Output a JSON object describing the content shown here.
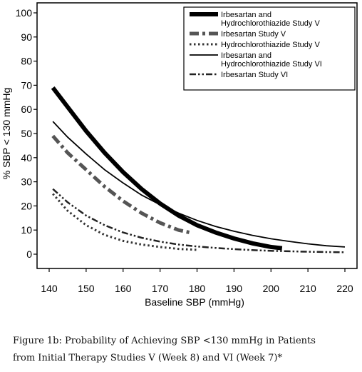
{
  "chart_data": {
    "type": "line",
    "xlabel": "Baseline SBP (mmHg)",
    "ylabel": "% SBP < 130 mmHg",
    "xlim": [
      140,
      220
    ],
    "ylim": [
      0,
      100
    ],
    "x_ticks": [
      140,
      150,
      160,
      170,
      180,
      190,
      200,
      210,
      220
    ],
    "y_ticks": [
      0,
      10,
      20,
      30,
      40,
      50,
      60,
      70,
      80,
      90,
      100
    ],
    "grid": false,
    "legend_position": "top-right",
    "series": [
      {
        "name": "Irbesartan and Hydrochlorothiazide Study V",
        "legend_lines": [
          "Irbesartan and",
          "Hydrochlorothiazide Study V"
        ],
        "style": "thick-solid",
        "x": [
          141,
          145,
          150,
          155,
          160,
          165,
          170,
          175,
          180,
          185,
          190,
          195,
          200,
          203
        ],
        "y": [
          69,
          61,
          51,
          42,
          34,
          27,
          21,
          16,
          12,
          9,
          6.5,
          4.5,
          3,
          2.5
        ]
      },
      {
        "name": "Irbesartan Study V",
        "legend_lines": [
          "Irbesartan Study V"
        ],
        "style": "thick-dash-dot",
        "x": [
          141,
          145,
          150,
          155,
          160,
          165,
          170,
          175,
          178
        ],
        "y": [
          49,
          42,
          35,
          28,
          22,
          17,
          13,
          10,
          9
        ]
      },
      {
        "name": "Hydrochlorothiazide Study V",
        "legend_lines": [
          "Hydrochlorothiazide Study V"
        ],
        "style": "dotted",
        "x": [
          141,
          145,
          150,
          155,
          160,
          165,
          170,
          175,
          180
        ],
        "y": [
          25,
          18,
          12,
          8,
          5.5,
          4,
          3,
          2.2,
          1.8
        ]
      },
      {
        "name": "Irbesartan and Hydrochlorothiazide Study VI",
        "legend_lines": [
          "Irbesartan and",
          "Hydrochlorothiazide Study VI"
        ],
        "style": "thin-solid",
        "x": [
          141,
          145,
          150,
          155,
          160,
          165,
          170,
          175,
          180,
          185,
          190,
          195,
          200,
          205,
          210,
          215,
          220
        ],
        "y": [
          55,
          48.5,
          41.5,
          35,
          29.5,
          24.5,
          20.5,
          17,
          14,
          11.5,
          9.5,
          7.8,
          6.4,
          5.3,
          4.3,
          3.5,
          3
        ]
      },
      {
        "name": "Irbesartan Study VI",
        "legend_lines": [
          "Irbesartan Study VI"
        ],
        "style": "dash-dot-dot",
        "x": [
          141,
          145,
          150,
          155,
          160,
          165,
          170,
          175,
          180,
          185,
          190,
          195,
          200,
          205,
          210,
          215,
          220
        ],
        "y": [
          27,
          21.5,
          16,
          12,
          9,
          6.8,
          5.2,
          4,
          3.2,
          2.6,
          2.1,
          1.7,
          1.4,
          1.2,
          1,
          0.9,
          0.8
        ]
      }
    ]
  },
  "caption": {
    "line1": "Figure 1b: Probability of Achieving SBP <130 mmHg in Patients",
    "line2": "from Initial Therapy Studies V (Week 8) and VI (Week 7)*"
  }
}
